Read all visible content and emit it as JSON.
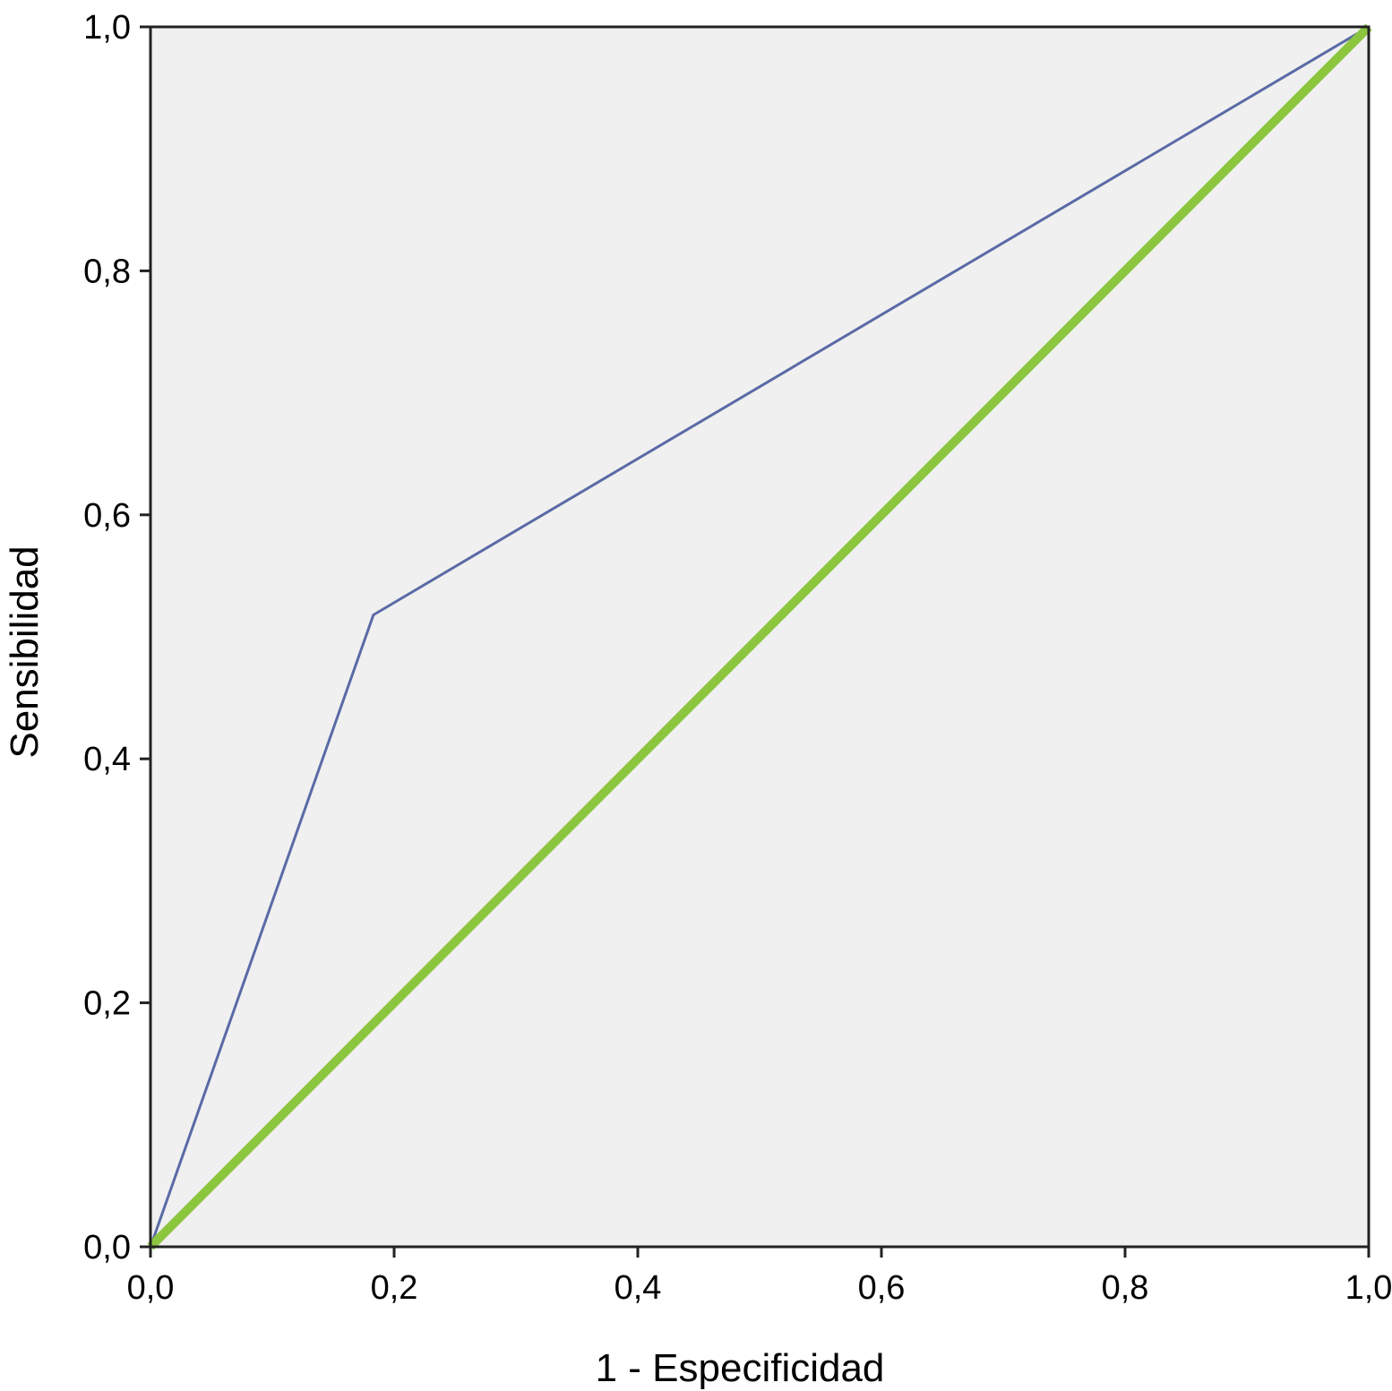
{
  "chart_data": {
    "type": "line",
    "title": "",
    "xlabel": "1 - Especificidad",
    "ylabel": "Sensibilidad",
    "xlim": [
      0,
      1
    ],
    "ylim": [
      0,
      1
    ],
    "x_ticks": [
      0,
      0.2,
      0.4,
      0.6,
      0.8,
      1.0
    ],
    "y_ticks": [
      0,
      0.2,
      0.4,
      0.6,
      0.8,
      1.0
    ],
    "x_tick_labels": [
      "0,0",
      "0,2",
      "0,4",
      "0,6",
      "0,8",
      "1,0"
    ],
    "y_tick_labels": [
      "0,0",
      "0,2",
      "0,4",
      "0,6",
      "0,8",
      "1,0"
    ],
    "grid": false,
    "legend": "none",
    "plot_background": "#f0f0f0",
    "series": [
      {
        "color": "#5a6aa6",
        "x": [
          0.0,
          0.183,
          1.0
        ],
        "y": [
          0.0,
          0.518,
          1.0
        ]
      },
      {
        "color": "#8cc63f",
        "x": [
          0.0,
          1.0
        ],
        "y": [
          0.0,
          1.0
        ]
      }
    ]
  }
}
